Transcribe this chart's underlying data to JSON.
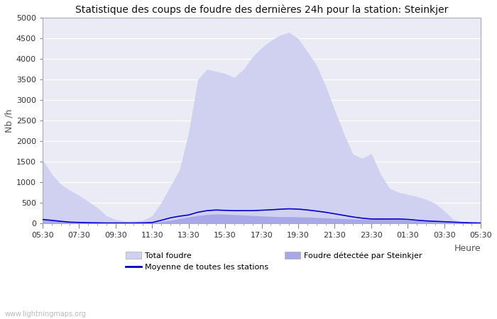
{
  "title": "Statistique des coups de foudre des dernières 24h pour la station: Steinkjer",
  "xlabel": "Heure",
  "ylabel": "Nb /h",
  "ylim": [
    0,
    5000
  ],
  "yticks": [
    0,
    500,
    1000,
    1500,
    2000,
    2500,
    3000,
    3500,
    4000,
    4500,
    5000
  ],
  "watermark": "www.lightningmaps.org",
  "x_labels": [
    "05:30",
    "07:30",
    "09:30",
    "11:30",
    "13:30",
    "15:30",
    "17:30",
    "19:30",
    "21:30",
    "23:30",
    "01:30",
    "03:30",
    "05:30"
  ],
  "bg_color": "#ffffff",
  "plot_bg_color": "#ebebf5",
  "grid_color": "#ffffff",
  "fill_total_color": "#d0d0f0",
  "fill_station_color": "#a8a8e8",
  "line_color": "#0000cc",
  "legend_items": [
    {
      "label": "Total foudre",
      "type": "fill",
      "color": "#d0d0f0"
    },
    {
      "label": "Moyenne de toutes les stations",
      "type": "line",
      "color": "#0000cc"
    },
    {
      "label": "Foudre détectée par Steinkjer",
      "type": "fill",
      "color": "#a8a8e8"
    }
  ],
  "y_total": [
    1550,
    1200,
    950,
    800,
    680,
    530,
    380,
    180,
    90,
    50,
    50,
    70,
    180,
    500,
    900,
    1300,
    2200,
    3500,
    3750,
    3700,
    3650,
    3550,
    3750,
    4050,
    4280,
    4450,
    4580,
    4650,
    4500,
    4180,
    3850,
    3350,
    2750,
    2180,
    1680,
    1580,
    1700,
    1200,
    850,
    750,
    700,
    650,
    580,
    480,
    300,
    90,
    40,
    20,
    20
  ],
  "y_station": [
    90,
    70,
    50,
    35,
    25,
    18,
    12,
    8,
    5,
    5,
    5,
    8,
    15,
    40,
    70,
    110,
    150,
    185,
    210,
    225,
    218,
    208,
    198,
    185,
    175,
    165,
    158,
    158,
    152,
    148,
    138,
    128,
    118,
    108,
    100,
    92,
    92,
    110,
    100,
    92,
    72,
    55,
    45,
    35,
    25,
    15,
    8,
    5,
    5
  ],
  "y_line": [
    90,
    70,
    45,
    25,
    18,
    12,
    8,
    5,
    5,
    5,
    5,
    8,
    15,
    70,
    130,
    170,
    200,
    265,
    305,
    320,
    312,
    305,
    305,
    305,
    315,
    325,
    340,
    350,
    342,
    322,
    295,
    265,
    228,
    190,
    152,
    122,
    102,
    102,
    102,
    102,
    92,
    72,
    55,
    45,
    35,
    25,
    15,
    8,
    5
  ]
}
